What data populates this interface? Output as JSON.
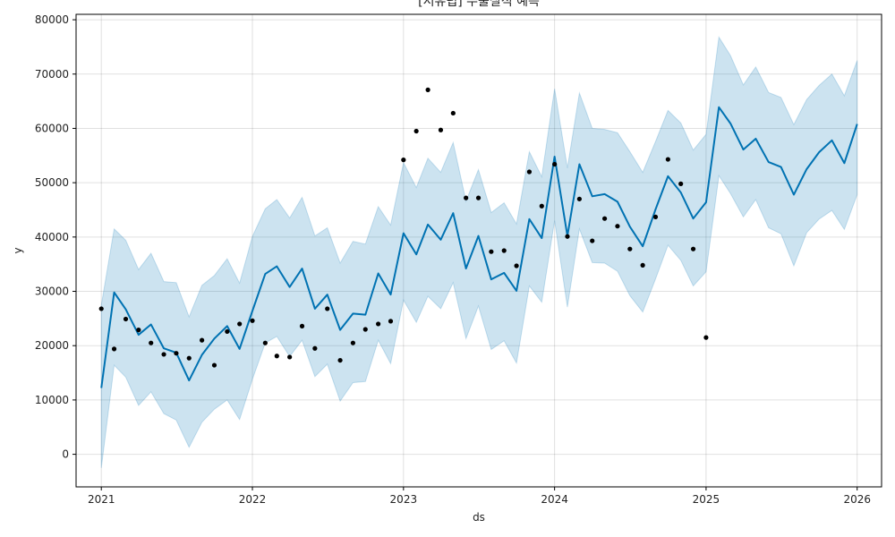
{
  "chart_data": {
    "type": "line",
    "title": "[서유럽] 수출실적 예측",
    "xlabel": "ds",
    "ylabel": "y",
    "xlim": [
      "2020-11-01",
      "2026-03-01"
    ],
    "ylim": [
      -6000,
      81000
    ],
    "yticks": [
      0,
      10000,
      20000,
      30000,
      40000,
      50000,
      60000,
      70000,
      80000
    ],
    "xticks": [
      "2021-01-01",
      "2022-01-01",
      "2023-01-01",
      "2024-01-01",
      "2025-01-01",
      "2026-01-01"
    ],
    "xtick_labels": [
      "2021",
      "2022",
      "2023",
      "2024",
      "2025",
      "2026"
    ],
    "grid": true,
    "colors": {
      "forecast_line": "#0072B2",
      "interval_fill": "#0072B2",
      "actual_points": "#000000"
    },
    "series": [
      {
        "kind": "actual",
        "x": [
          "2021-01-01",
          "2021-02-01",
          "2021-03-01",
          "2021-04-01",
          "2021-05-01",
          "2021-06-01",
          "2021-07-01",
          "2021-08-01",
          "2021-09-01",
          "2021-10-01",
          "2021-11-01",
          "2021-12-01",
          "2022-01-01",
          "2022-02-01",
          "2022-03-01",
          "2022-04-01",
          "2022-05-01",
          "2022-06-01",
          "2022-07-01",
          "2022-08-01",
          "2022-09-01",
          "2022-10-01",
          "2022-11-01",
          "2022-12-01",
          "2023-01-01",
          "2023-02-01",
          "2023-03-01",
          "2023-04-01",
          "2023-05-01",
          "2023-06-01",
          "2023-07-01",
          "2023-08-01",
          "2023-09-01",
          "2023-10-01",
          "2023-11-01",
          "2023-12-01",
          "2024-01-01",
          "2024-02-01",
          "2024-03-01",
          "2024-04-01",
          "2024-05-01",
          "2024-06-01",
          "2024-07-01",
          "2024-08-01",
          "2024-09-01",
          "2024-10-01",
          "2024-11-01",
          "2024-12-01",
          "2025-01-01"
        ],
        "y": [
          26800,
          19400,
          24900,
          22900,
          20500,
          18400,
          18600,
          17700,
          21000,
          16400,
          22600,
          24000,
          24600,
          20500,
          18100,
          17900,
          23600,
          19500,
          26800,
          17300,
          20500,
          23000,
          24000,
          24500,
          54200,
          59500,
          67100,
          59700,
          62800,
          47200,
          47200,
          37300,
          37500,
          34700,
          52000,
          45700,
          53400,
          40100,
          47000,
          39300,
          43400,
          42000,
          37800,
          34800,
          43700,
          54300,
          49800,
          37800,
          21500
        ]
      },
      {
        "kind": "forecast",
        "x": [
          "2021-01-01",
          "2021-02-01",
          "2021-03-01",
          "2021-04-01",
          "2021-05-01",
          "2021-06-01",
          "2021-07-01",
          "2021-08-01",
          "2021-09-01",
          "2021-10-01",
          "2021-11-01",
          "2021-12-01",
          "2022-01-01",
          "2022-02-01",
          "2022-03-01",
          "2022-04-01",
          "2022-05-01",
          "2022-06-01",
          "2022-07-01",
          "2022-08-01",
          "2022-09-01",
          "2022-10-01",
          "2022-11-01",
          "2022-12-01",
          "2023-01-01",
          "2023-02-01",
          "2023-03-01",
          "2023-04-01",
          "2023-05-01",
          "2023-06-01",
          "2023-07-01",
          "2023-08-01",
          "2023-09-01",
          "2023-10-01",
          "2023-11-01",
          "2023-12-01",
          "2024-01-01",
          "2024-02-01",
          "2024-03-01",
          "2024-04-01",
          "2024-05-01",
          "2024-06-01",
          "2024-07-01",
          "2024-08-01",
          "2024-09-01",
          "2024-10-01",
          "2024-11-01",
          "2024-12-01",
          "2025-01-01",
          "2025-02-01",
          "2025-03-01",
          "2025-04-01",
          "2025-05-01",
          "2025-06-01",
          "2025-07-01",
          "2025-08-01",
          "2025-09-01",
          "2025-10-01",
          "2025-11-01",
          "2025-12-01",
          "2026-01-01"
        ],
        "yhat": [
          12200,
          29800,
          26700,
          22000,
          23900,
          19500,
          18700,
          13600,
          18300,
          21300,
          23600,
          19400,
          26400,
          33200,
          34600,
          30800,
          34200,
          26800,
          29400,
          22900,
          25900,
          25700,
          33300,
          29400,
          40700,
          36800,
          42300,
          39500,
          44400,
          34200,
          40200,
          32200,
          33400,
          30100,
          43300,
          39800,
          54800,
          40200,
          53400,
          47500,
          47900,
          46500,
          41900,
          38300,
          45100,
          51200,
          48200,
          43400,
          46400,
          63900,
          60900,
          56100,
          58100,
          53800,
          52900,
          47800,
          52500,
          55600,
          57800,
          53600,
          60800
        ],
        "yhat_lower": [
          -2500,
          16400,
          14200,
          9000,
          11500,
          7500,
          6300,
          1300,
          5900,
          8300,
          10000,
          6400,
          13800,
          20500,
          21700,
          18000,
          21000,
          14300,
          16600,
          9800,
          13200,
          13400,
          21000,
          16700,
          28400,
          24300,
          29100,
          26800,
          31600,
          21300,
          27300,
          19300,
          20900,
          16800,
          31000,
          28000,
          43000,
          27100,
          41500,
          35300,
          35200,
          33700,
          29200,
          26200,
          32300,
          38500,
          35700,
          31000,
          33600,
          51300,
          48000,
          43700,
          46900,
          41700,
          40600,
          34700,
          40800,
          43300,
          44900,
          41400,
          47800
        ],
        "yhat_upper": [
          27500,
          41500,
          39400,
          34000,
          37000,
          31800,
          31600,
          25300,
          31100,
          32900,
          36000,
          31500,
          40100,
          45200,
          46900,
          43500,
          47300,
          40200,
          41700,
          35200,
          39200,
          38700,
          45600,
          42200,
          53700,
          49100,
          54500,
          51900,
          57400,
          46600,
          52400,
          44500,
          46300,
          42400,
          55700,
          51100,
          67300,
          52700,
          66500,
          60000,
          59800,
          59200,
          55700,
          51900,
          57600,
          63300,
          61000,
          56000,
          58900,
          76800,
          73400,
          68000,
          71300,
          66600,
          65700,
          60700,
          65300,
          67900,
          70000,
          66000,
          72500
        ]
      }
    ]
  }
}
